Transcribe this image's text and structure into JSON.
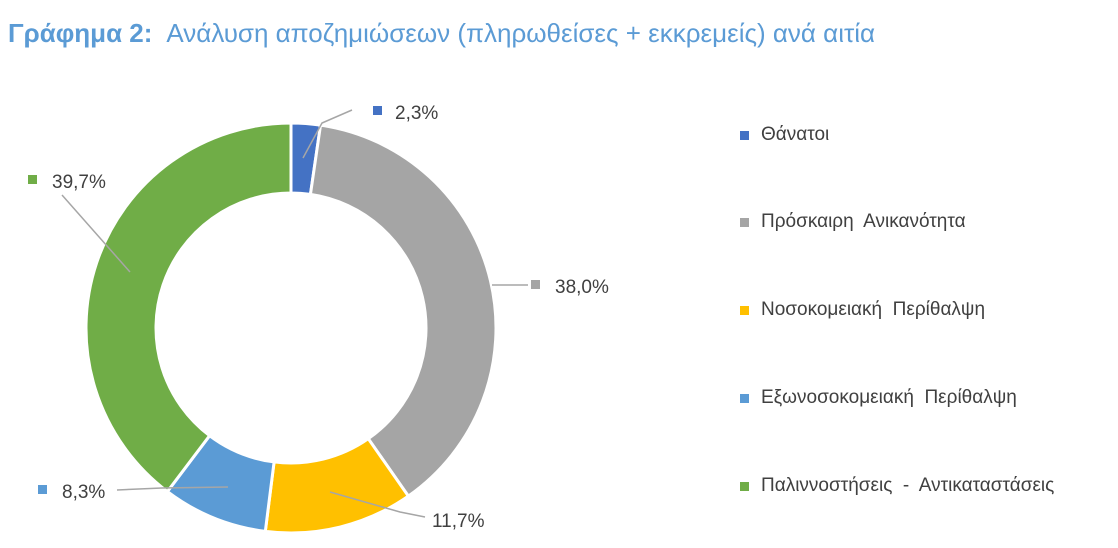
{
  "title": {
    "prefix": "Γράφημα 2:",
    "text": "Ανάλυση αποζημιώσεων (πληρωθείσες + εκκρεμείς) ανά αιτία"
  },
  "chart_data": {
    "type": "pie",
    "variant": "donut",
    "categories": [
      "Θάνατοι",
      "Πρόσκαιρη  Ανικανότητα",
      "Νοσοκομειακή  Περίθαλψη",
      "Εξωνοσοκομειακή  Περίθαλψη",
      "Παλιννοστήσεις  -  Αντικαταστάσεις"
    ],
    "values": [
      2.3,
      38.0,
      11.7,
      8.3,
      39.7
    ],
    "data_labels": [
      "2,3%",
      "38,0%",
      "11,7%",
      "8,3%",
      "39,7%"
    ],
    "colors": [
      "#4472c4",
      "#a5a5a5",
      "#ffc000",
      "#5b9bd5",
      "#70ad47"
    ],
    "legend_position": "right"
  }
}
